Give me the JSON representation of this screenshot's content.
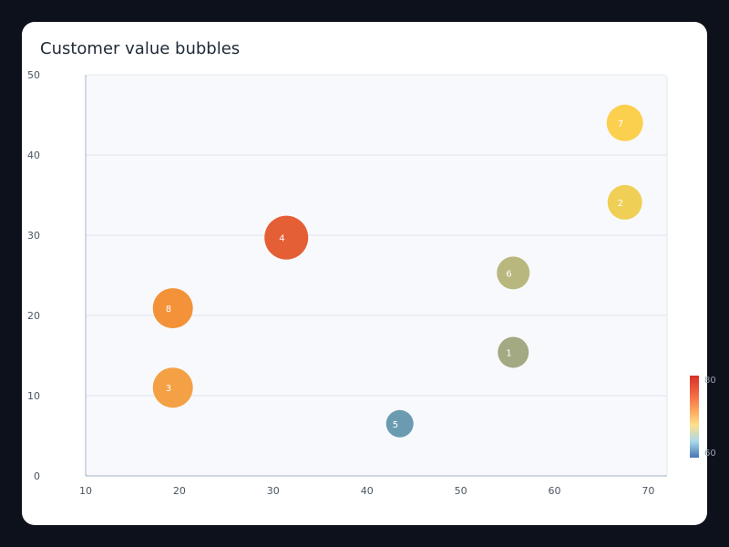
{
  "chart_data": {
    "type": "scatter",
    "subtype": "bubble",
    "title": "Customer value bubbles",
    "xlabel": "",
    "ylabel": "",
    "xlim": [
      10,
      72
    ],
    "ylim": [
      0,
      50
    ],
    "x_ticks": [
      10,
      20,
      30,
      40,
      50,
      60,
      70
    ],
    "y_ticks": [
      0,
      10,
      20,
      30,
      40,
      50
    ],
    "grid": "horizontal",
    "colorbar": {
      "min": 60,
      "max": 80,
      "labels": [
        "80",
        "60"
      ],
      "colors": [
        "#d73027",
        "#f46d43",
        "#fdae61",
        "#fee08b",
        "#abd9e9",
        "#4575b4"
      ]
    },
    "points": [
      {
        "label": "1",
        "x": 55.6,
        "y": 15.4,
        "size": 17,
        "color": "#a3a983"
      },
      {
        "label": "2",
        "x": 67.5,
        "y": 34.1,
        "size": 19,
        "color": "#f0cf56"
      },
      {
        "label": "3",
        "x": 19.3,
        "y": 11.0,
        "size": 22,
        "color": "#f3a144"
      },
      {
        "label": "4",
        "x": 31.4,
        "y": 29.7,
        "size": 24,
        "color": "#e55f36"
      },
      {
        "label": "5",
        "x": 43.5,
        "y": 6.5,
        "size": 15,
        "color": "#6b9bb0"
      },
      {
        "label": "6",
        "x": 55.6,
        "y": 25.3,
        "size": 18,
        "color": "#b8b77d"
      },
      {
        "label": "7",
        "x": 67.5,
        "y": 44.0,
        "size": 20,
        "color": "#fcd04f"
      },
      {
        "label": "8",
        "x": 19.3,
        "y": 20.9,
        "size": 22,
        "color": "#f39238"
      }
    ]
  }
}
